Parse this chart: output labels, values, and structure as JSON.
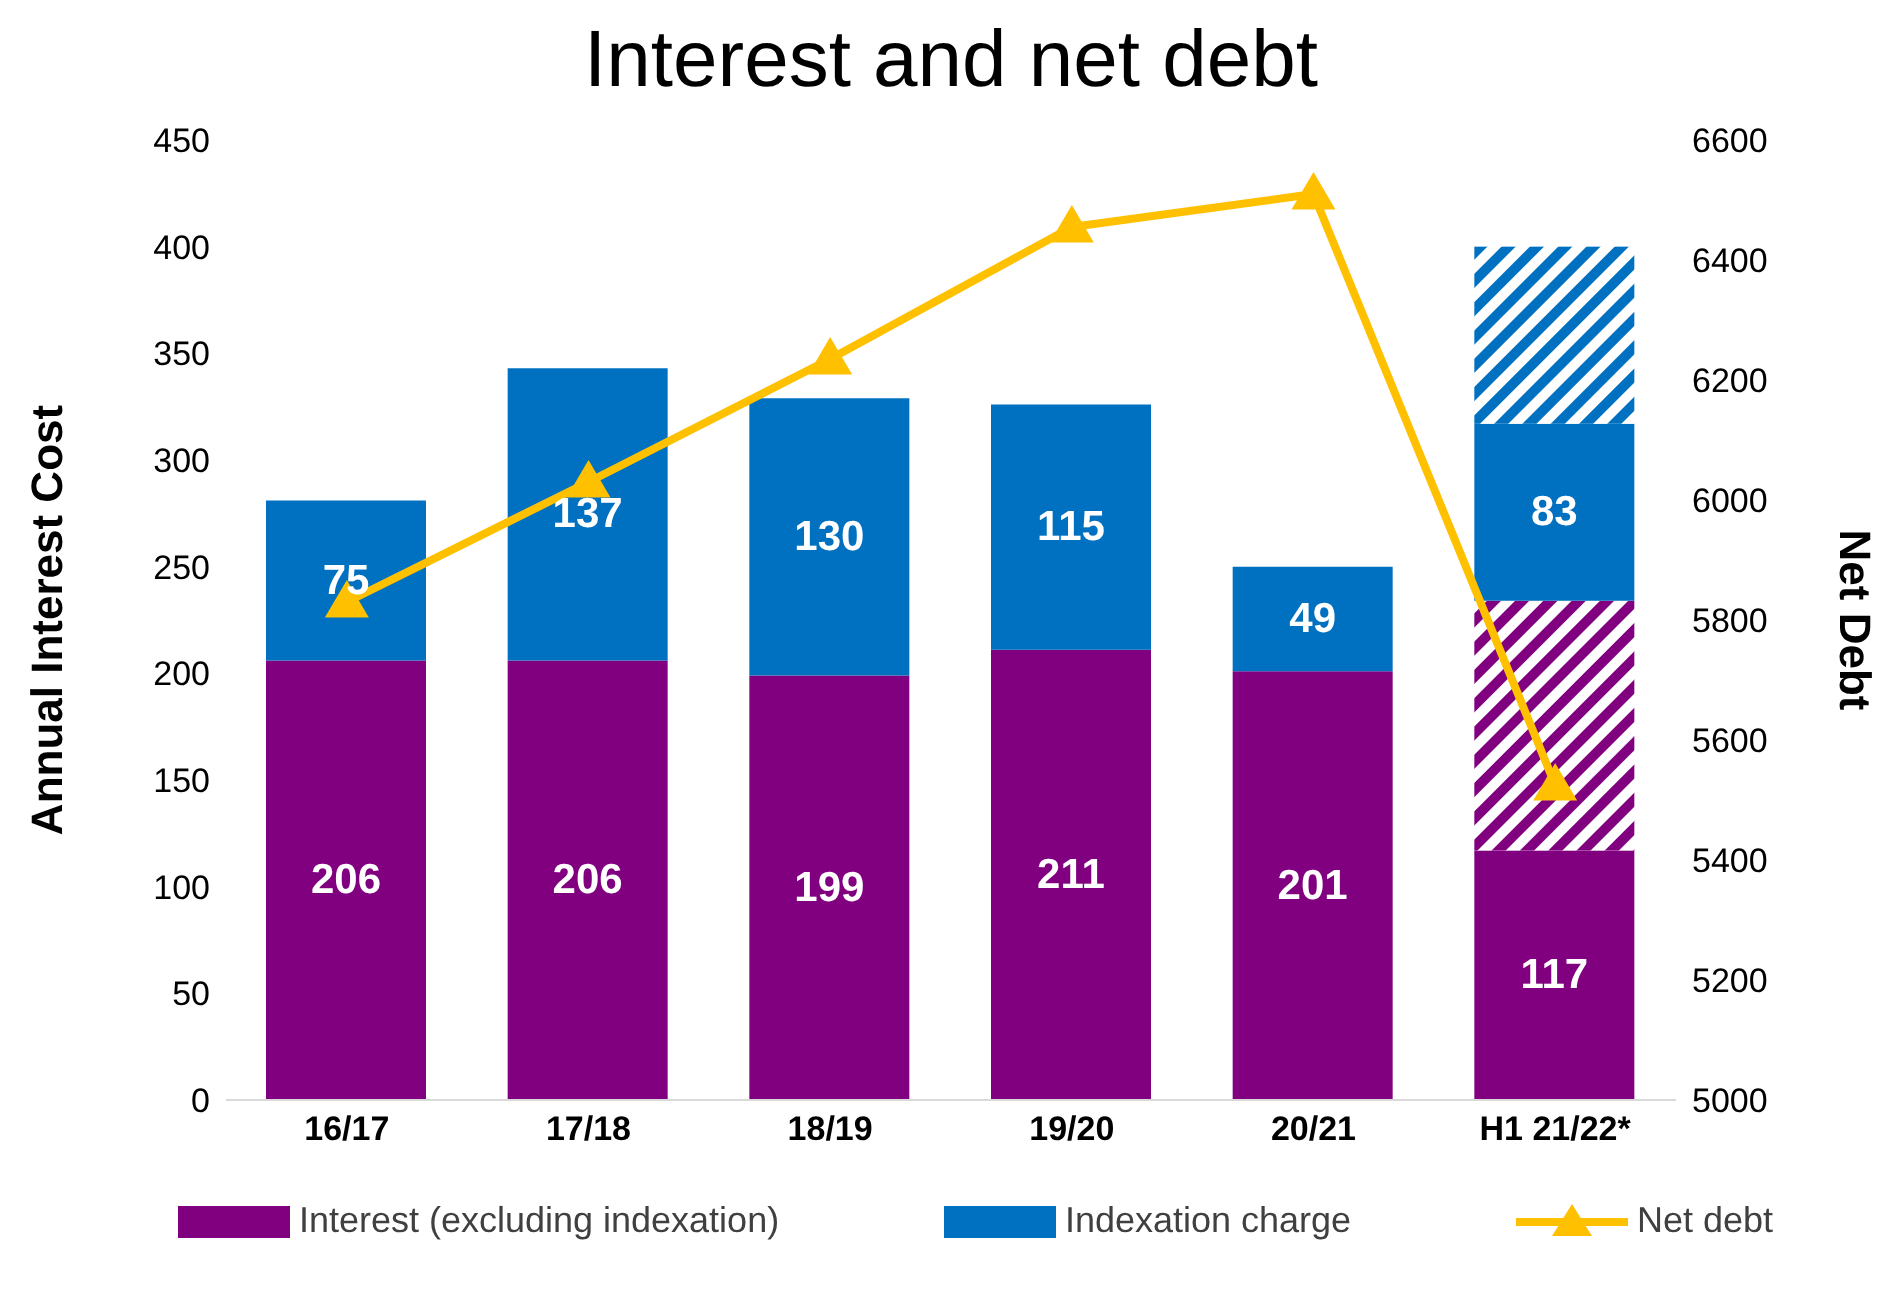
{
  "chart_data": {
    "type": "bar",
    "title": "Interest and net debt",
    "categories": [
      "16/17",
      "17/18",
      "18/19",
      "19/20",
      "20/21",
      "H1 21/22*"
    ],
    "stacked": true,
    "ylabel": "Annual Interest Cost",
    "y2label": "Net Debt",
    "ylim": [
      0,
      450
    ],
    "yticks": [
      0,
      50,
      100,
      150,
      200,
      250,
      300,
      350,
      400,
      450
    ],
    "y2lim": [
      5000,
      6600
    ],
    "y2ticks": [
      5000,
      5200,
      5400,
      5600,
      5800,
      6000,
      6200,
      6400,
      6600
    ],
    "legend": "bottom",
    "marker": "triangle",
    "line_style": "solid",
    "series": [
      {
        "name": "Interest (excluding indexation)",
        "color": "#800080",
        "values": [
          206,
          206,
          199,
          211,
          201,
          117
        ],
        "value_labels": [
          "206",
          "206",
          "199",
          "211",
          "201",
          "117"
        ]
      },
      {
        "color": "#800080",
        "values": [
          0,
          0,
          0,
          0,
          0,
          117
        ],
        "value_labels": [
          null,
          null,
          null,
          null,
          null,
          null
        ]
      },
      {
        "name": "Indexation charge",
        "color": "#0070c0",
        "values": [
          75,
          137,
          130,
          115,
          49,
          83
        ],
        "value_labels": [
          "75",
          "137",
          "130",
          "115",
          "49",
          "83"
        ]
      },
      {
        "color": "#0070c0",
        "values": [
          0,
          0,
          0,
          0,
          0,
          83
        ],
        "value_labels": [
          null,
          null,
          null,
          null,
          null,
          null
        ]
      },
      {
        "name": "Net debt",
        "type": "line",
        "axis": "y2",
        "color": "#ffc000",
        "values": [
          5830,
          6030,
          6235,
          6455,
          6510,
          5525
        ]
      }
    ]
  }
}
